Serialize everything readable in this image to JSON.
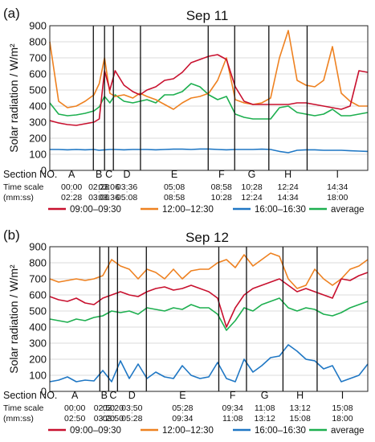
{
  "legend": [
    {
      "name": "09:00–09:30",
      "color": "#c8102e"
    },
    {
      "name": "12:00–12:30",
      "color": "#ee8120"
    },
    {
      "name": "16:00–16:30",
      "color": "#1f77c4"
    },
    {
      "name": "average",
      "color": "#1daf4f"
    }
  ],
  "row_labels": {
    "section": "Section NO.",
    "time1": "Time scale",
    "time2": "(mm:ss)"
  },
  "chart_data": [
    {
      "panel": "(a)",
      "type": "line",
      "title": "Sep 11",
      "ylabel": "Solar radiation / W/m²",
      "xlim": [
        0,
        18
      ],
      "ylim": [
        0,
        900
      ],
      "yticks": [
        0,
        100,
        200,
        300,
        400,
        500,
        600,
        700,
        800,
        900
      ],
      "grid": true,
      "boundaries": [
        2.4667,
        3.1,
        3.6,
        5.1333,
        8.9667,
        10.4667,
        12.4,
        14.5667
      ],
      "sections": [
        {
          "id": "A",
          "start": "00:00",
          "end": "02:28"
        },
        {
          "id": "B",
          "start": "02:28",
          "end": "03:06"
        },
        {
          "id": "C",
          "start": "03:06",
          "end": "03:36"
        },
        {
          "id": "D",
          "start": "03:36",
          "end": "05:08"
        },
        {
          "id": "E",
          "start": "05:08",
          "end": "08:58"
        },
        {
          "id": "F",
          "start": "08:58",
          "end": "10:28"
        },
        {
          "id": "G",
          "start": "10:28",
          "end": "12:24"
        },
        {
          "id": "H",
          "start": "12:24",
          "end": "14:34"
        },
        {
          "id": "I",
          "start": "14:34",
          "end": "18:00"
        }
      ],
      "x": [
        0,
        0.5,
        1,
        1.5,
        2,
        2.5,
        2.8,
        3.1,
        3.4,
        3.7,
        4.2,
        4.7,
        5.1,
        5.5,
        6,
        6.5,
        7,
        7.5,
        8,
        8.5,
        9,
        9.5,
        10,
        10.5,
        11,
        11.5,
        12,
        12.5,
        13,
        13.5,
        14,
        14.5,
        15,
        15.5,
        16,
        16.5,
        17,
        17.5,
        18
      ],
      "series": [
        {
          "name": "09:00–09:30",
          "values": [
            310,
            295,
            285,
            280,
            290,
            300,
            320,
            620,
            500,
            620,
            530,
            490,
            470,
            500,
            520,
            560,
            570,
            610,
            670,
            690,
            710,
            720,
            690,
            520,
            430,
            410,
            410,
            410,
            410,
            410,
            420,
            420,
            410,
            400,
            390,
            380,
            400,
            620,
            610
          ]
        },
        {
          "name": "12:00–12:30",
          "values": [
            800,
            430,
            390,
            400,
            430,
            470,
            540,
            700,
            480,
            460,
            470,
            450,
            480,
            460,
            440,
            410,
            380,
            420,
            450,
            460,
            480,
            560,
            700,
            440,
            420,
            410,
            420,
            450,
            700,
            870,
            560,
            530,
            520,
            560,
            770,
            480,
            430,
            400,
            400
          ]
        },
        {
          "name": "16:00–16:30",
          "values": [
            130,
            130,
            128,
            130,
            128,
            130,
            125,
            128,
            130,
            130,
            128,
            130,
            130,
            130,
            128,
            130,
            132,
            132,
            130,
            133,
            133,
            130,
            128,
            130,
            130,
            130,
            132,
            130,
            118,
            110,
            125,
            128,
            128,
            125,
            125,
            125,
            122,
            120,
            118
          ]
        },
        {
          "name": "average",
          "values": [
            420,
            350,
            340,
            345,
            355,
            370,
            395,
            460,
            420,
            470,
            430,
            420,
            430,
            440,
            420,
            470,
            470,
            490,
            540,
            520,
            470,
            440,
            460,
            350,
            330,
            320,
            320,
            320,
            390,
            400,
            360,
            350,
            340,
            350,
            380,
            340,
            340,
            350,
            360
          ]
        }
      ]
    },
    {
      "panel": "(b)",
      "type": "line",
      "title": "Sep 12",
      "ylabel": "Solar radiation / W/m²",
      "xlim": [
        0,
        18
      ],
      "ylim": [
        0,
        900
      ],
      "yticks": [
        0,
        100,
        200,
        300,
        400,
        500,
        600,
        700,
        800,
        900
      ],
      "grid": true,
      "boundaries": [
        2.8333,
        3.3333,
        3.8333,
        5.4667,
        9.5667,
        11.1333,
        13.2,
        15.1333
      ],
      "sections": [
        {
          "id": "A",
          "start": "00:00",
          "end": "02:50"
        },
        {
          "id": "B",
          "start": "02:50",
          "end": "03:20"
        },
        {
          "id": "C",
          "start": "03:20",
          "end": "03:50"
        },
        {
          "id": "D",
          "start": "03:50",
          "end": "05:28"
        },
        {
          "id": "E",
          "start": "05:28",
          "end": "09:34"
        },
        {
          "id": "F",
          "start": "09:34",
          "end": "11:08"
        },
        {
          "id": "G",
          "start": "11:08",
          "end": "13:12"
        },
        {
          "id": "H",
          "start": "13:12",
          "end": "15:08"
        },
        {
          "id": "I",
          "start": "15:08",
          "end": "18:00"
        }
      ],
      "x": [
        0,
        0.5,
        1,
        1.5,
        2,
        2.5,
        3,
        3.5,
        4,
        4.5,
        5,
        5.5,
        6,
        6.5,
        7,
        7.5,
        8,
        8.5,
        9,
        9.5,
        10,
        10.5,
        11,
        11.5,
        12,
        12.5,
        13,
        13.5,
        14,
        14.5,
        15,
        15.5,
        16,
        16.5,
        17,
        17.5,
        18
      ],
      "series": [
        {
          "name": "09:00–09:30",
          "values": [
            590,
            570,
            560,
            580,
            550,
            540,
            580,
            600,
            620,
            600,
            590,
            620,
            640,
            650,
            630,
            640,
            660,
            640,
            620,
            580,
            400,
            520,
            600,
            640,
            660,
            680,
            700,
            660,
            620,
            640,
            620,
            600,
            580,
            700,
            690,
            720,
            740
          ]
        },
        {
          "name": "12:00–12:30",
          "values": [
            700,
            680,
            690,
            700,
            690,
            700,
            720,
            820,
            780,
            760,
            700,
            760,
            740,
            700,
            760,
            700,
            750,
            760,
            760,
            800,
            820,
            770,
            850,
            780,
            820,
            860,
            840,
            700,
            640,
            660,
            760,
            700,
            660,
            700,
            760,
            780,
            820
          ]
        },
        {
          "name": "16:00–16:30",
          "values": [
            60,
            70,
            90,
            60,
            70,
            65,
            130,
            60,
            190,
            80,
            170,
            80,
            120,
            90,
            80,
            160,
            100,
            80,
            90,
            180,
            80,
            60,
            200,
            120,
            160,
            210,
            220,
            290,
            250,
            200,
            190,
            140,
            160,
            60,
            80,
            100,
            170
          ]
        },
        {
          "name": "average",
          "values": [
            450,
            440,
            430,
            450,
            440,
            460,
            470,
            500,
            490,
            500,
            480,
            520,
            510,
            500,
            520,
            510,
            540,
            520,
            520,
            480,
            380,
            440,
            520,
            500,
            540,
            560,
            580,
            520,
            500,
            520,
            510,
            480,
            470,
            490,
            520,
            540,
            560
          ]
        }
      ]
    }
  ]
}
